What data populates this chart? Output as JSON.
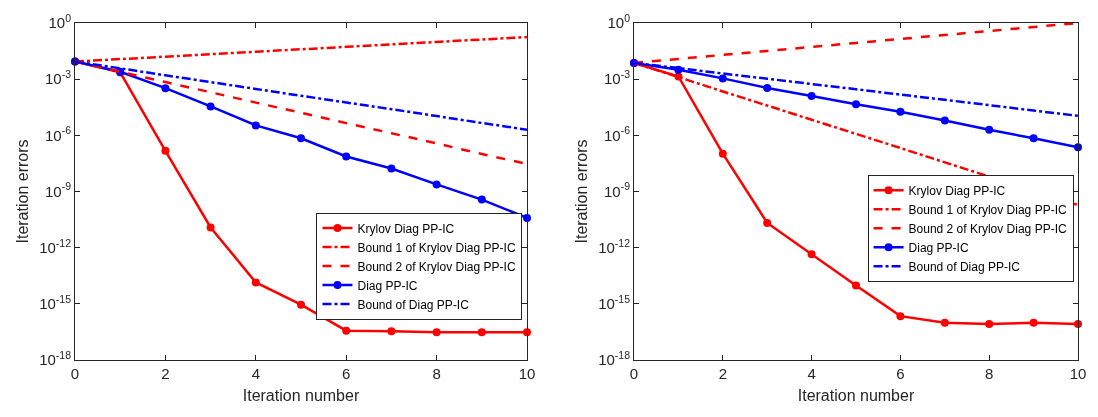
{
  "chart_data": [
    {
      "type": "line",
      "xlabel": "Iteration number",
      "ylabel": "Iteration errors",
      "log": "y",
      "grid": false,
      "legend": "bottom right",
      "xlim": [
        0,
        10
      ],
      "xticks": [
        0,
        2,
        4,
        6,
        8,
        10
      ],
      "ylim": [
        1e-18,
        1
      ],
      "yticks": [
        {
          "value": 1e-18,
          "label": "10$^{-18}$"
        },
        {
          "value": 1e-15,
          "label": "10$^{-15}$"
        },
        {
          "value": 1e-12,
          "label": "10$^{-12}$"
        },
        {
          "value": 1e-09,
          "label": "10$^{-9}$"
        },
        {
          "value": 1e-06,
          "label": "10$^{-6}$"
        },
        {
          "value": 0.001,
          "label": "10$^{-3}$"
        },
        {
          "value": 1,
          "label": "10$^{0}$"
        }
      ],
      "x": [
        0,
        1,
        2,
        3,
        4,
        5,
        6,
        7,
        8,
        9,
        10
      ],
      "series": [
        {
          "name": "Krylov Diag PP-IC",
          "color": "#ff0000",
          "marker": "circle",
          "line_style": "solid",
          "values": [
            0.0087,
            0.0023,
            1.5e-07,
            1.2e-11,
            1.4e-14,
            9e-16,
            3.7e-17,
            3.4e-17,
            3e-17,
            3e-17,
            3e-17
          ]
        },
        {
          "name": "Bound 1 of Krylov Diag PP-IC",
          "color": "#ff0000",
          "marker": "none",
          "line_style": "dashdot",
          "values": [
            0.0087,
            0.0118,
            0.0159,
            0.0215,
            0.0291,
            0.0394,
            0.0532,
            0.0719,
            0.0973,
            0.1315,
            0.178
          ]
        },
        {
          "name": "Bound 2 of Krylov Diag PP-IC",
          "color": "#ff0000",
          "marker": "none",
          "line_style": "dashed",
          "values": [
            0.0087,
            0.0025,
            0.0007,
            0.0002,
            5.6e-05,
            1.6e-05,
            4.5e-06,
            1.3e-06,
            3.7e-07,
            1e-07,
            3e-08
          ]
        },
        {
          "name": "Diag PP-IC",
          "color": "#0000ff",
          "marker": "circle",
          "line_style": "solid",
          "values": [
            0.0087,
            0.0025,
            0.00033,
            3.5e-05,
            3.4e-06,
            7e-07,
            7.4e-08,
            1.7e-08,
            2.4e-09,
            3.7e-10,
            3.9e-11
          ]
        },
        {
          "name": "Bound of Diag PP-IC",
          "color": "#0000ff",
          "marker": "none",
          "line_style": "dashdot",
          "values": [
            0.0087,
            0.0038,
            0.0016,
            0.0007,
            0.0003,
            0.00013,
            5.7e-05,
            2.5e-05,
            1.07e-05,
            4.6e-06,
            2e-06
          ]
        }
      ]
    },
    {
      "type": "line",
      "xlabel": "Iteration number",
      "ylabel": "Iteration errors",
      "log": "y",
      "grid": false,
      "legend": "right",
      "xlim": [
        0,
        10
      ],
      "xticks": [
        0,
        2,
        4,
        6,
        8,
        10
      ],
      "ylim": [
        1e-18,
        1
      ],
      "yticks": [
        {
          "value": 1e-18,
          "label": "10$^{-18}$"
        },
        {
          "value": 1e-15,
          "label": "10$^{-15}$"
        },
        {
          "value": 1e-12,
          "label": "10$^{-12}$"
        },
        {
          "value": 1e-09,
          "label": "10$^{-9}$"
        },
        {
          "value": 1e-06,
          "label": "10$^{-6}$"
        },
        {
          "value": 0.001,
          "label": "10$^{-3}$"
        },
        {
          "value": 1,
          "label": "10$^{0}$"
        }
      ],
      "x": [
        0,
        1,
        2,
        3,
        4,
        5,
        6,
        7,
        8,
        9,
        10
      ],
      "series": [
        {
          "name": "Krylov Diag PP-IC",
          "color": "#ff0000",
          "marker": "circle",
          "line_style": "solid",
          "values": [
            0.0074,
            0.0014,
            1.05e-07,
            2.1e-11,
            4.4e-13,
            9.5e-15,
            2.2e-16,
            9.8e-17,
            8.5e-17,
            9.8e-17,
            8.5e-17
          ]
        },
        {
          "name": "Bound 1 of Krylov Diag PP-IC",
          "color": "#ff0000",
          "marker": "none",
          "line_style": "dashdot",
          "values": [
            0.0074,
            0.0013,
            0.00022,
            3.9e-05,
            6.8e-06,
            1.2e-06,
            2.1e-07,
            3.6e-08,
            6.3e-09,
            null,
            1.9e-10
          ]
        },
        {
          "name": "Bound 2 of Krylov Diag PP-IC",
          "color": "#ff0000",
          "marker": "none",
          "line_style": "dashed",
          "values": [
            0.0074,
            0.0121,
            0.0198,
            0.0323,
            0.0527,
            0.0861,
            0.141,
            0.23,
            0.375,
            0.612,
            1
          ]
        },
        {
          "name": "Diag PP-IC",
          "color": "#0000ff",
          "marker": "circle",
          "line_style": "solid",
          "values": [
            0.0074,
            0.0032,
            0.0011,
            0.00034,
            0.000126,
            4.6e-05,
            1.8e-05,
            6.2e-06,
            2e-06,
            6.9e-07,
            2.3e-07
          ]
        },
        {
          "name": "Bound of Diag PP-IC",
          "color": "#0000ff",
          "marker": "none",
          "line_style": "dashdot",
          "values": [
            0.0074,
            0.0039,
            0.002,
            0.00106,
            0.00055,
            0.00029,
            0.00015,
            7.9e-05,
            4.1e-05,
            2.1e-05,
            1.1e-05
          ]
        }
      ]
    }
  ]
}
